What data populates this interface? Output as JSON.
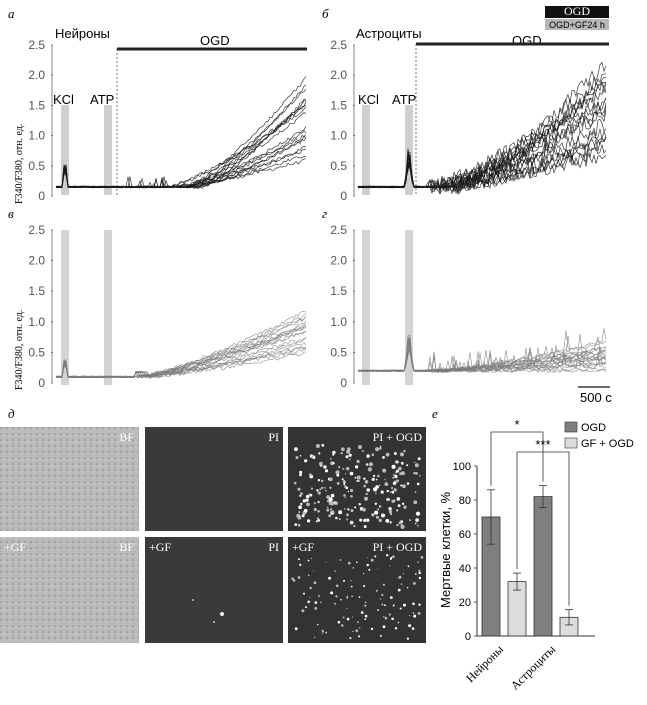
{
  "panels": {
    "a": {
      "letter": "а",
      "title": "Нейроны",
      "ogd": "OGD",
      "kcl": "KCl",
      "atp": "ATP",
      "ylabel": "F340/F380, отн. ед."
    },
    "b": {
      "letter": "б",
      "title": "Астроциты",
      "ogd": "OGD",
      "kcl": "KCl",
      "atp": "ATP"
    },
    "c": {
      "letter": "в",
      "ylabel": "F340/F380, отн. ед."
    },
    "d": {
      "letter": "г",
      "scalebar": "500 с"
    }
  },
  "legend_top": {
    "ogd": "OGD",
    "ogd_gf": "OGD+GF24 h"
  },
  "micro": {
    "letter": "д",
    "row1": [
      "BF",
      "PI",
      "PI + OGD"
    ],
    "row2_prefix": "+GF",
    "row2": [
      "BF",
      "PI",
      "PI + OGD"
    ]
  },
  "colors": {
    "trace_dark": "#1a1a1a",
    "trace_gray": "#7a7a7a",
    "stim_band": "#cfcfcf",
    "bar_dark": "#7f7f7f",
    "bar_light": "#dcdcdc"
  },
  "chart_data": [
    {
      "type": "line",
      "panel": "а",
      "xlabel": "",
      "ylabel": "F340/F380, отн. ед.",
      "ylim": [
        0,
        2.5
      ],
      "yticks": [
        "0",
        "0.5",
        "1.0",
        "1.5",
        "2.0",
        "2.5"
      ],
      "series_summary": {
        "baseline": 0.15,
        "kcl_peak": 0.7,
        "ogd_final_min": 0.6,
        "ogd_final_max": 2.2
      }
    },
    {
      "type": "line",
      "panel": "б",
      "ylim": [
        0,
        2.5
      ],
      "yticks": [
        "0",
        "0.5",
        "1.0",
        "1.5",
        "2.0",
        "2.5"
      ],
      "series_summary": {
        "baseline": 0.15,
        "atp_peak": 1.0,
        "ogd_final_min": 0.7,
        "ogd_final_max": 2.5
      }
    },
    {
      "type": "line",
      "panel": "в",
      "ylabel": "F340/F380, отн. ед.",
      "ylim": [
        0,
        2.5
      ],
      "yticks": [
        "0",
        "0.5",
        "1.0",
        "1.5",
        "2.0",
        "2.5"
      ],
      "series_summary": {
        "baseline": 0.1,
        "kcl_peak": 0.55,
        "ogd_final_min": 0.5,
        "ogd_final_max": 1.4
      }
    },
    {
      "type": "line",
      "panel": "г",
      "ylim": [
        0,
        2.5
      ],
      "yticks": [
        "0",
        "0.5",
        "1.0",
        "1.5",
        "2.0",
        "2.5"
      ],
      "series_summary": {
        "baseline": 0.2,
        "atp_peak": 1.0,
        "ogd_final_min": 0.2,
        "ogd_final_max": 0.8
      }
    },
    {
      "type": "bar",
      "panel": "е",
      "ylabel": "Мертвые клетки, %",
      "ylim": [
        0,
        100
      ],
      "yticks": [
        "0",
        "20",
        "40",
        "60",
        "80",
        "100"
      ],
      "categories": [
        "Нейроны",
        "Астроциты"
      ],
      "series": [
        {
          "name": "OGD",
          "values": [
            70,
            82
          ],
          "errors": [
            16,
            6.5
          ]
        },
        {
          "name": "GF + OGD",
          "values": [
            32,
            11
          ],
          "errors": [
            5,
            4.5
          ]
        }
      ],
      "significance": [
        "*",
        "***"
      ]
    }
  ]
}
